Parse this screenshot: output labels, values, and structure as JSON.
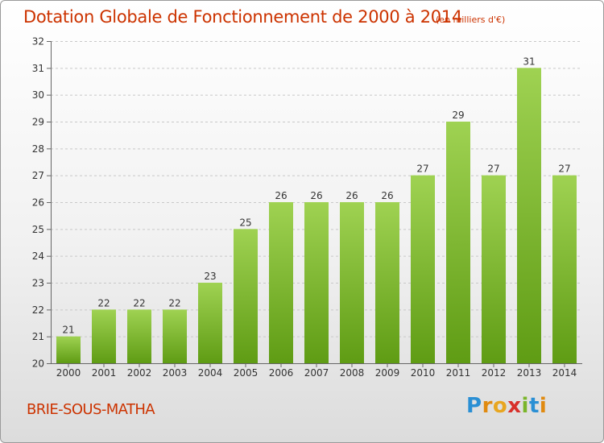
{
  "title": "Dotation Globale de Fonctionnement de 2000 à 2014",
  "subtitle": "(en milliers d'€)",
  "commune": "BRIE-SOUS-MATHA",
  "logo": {
    "letters": [
      "P",
      "r",
      "o",
      "x",
      "i",
      "t",
      "i"
    ]
  },
  "colors": {
    "bar_top": "#9fd252",
    "bar_bottom": "#5f9c14",
    "title": "#cc3300"
  },
  "chart_data": {
    "type": "bar",
    "categories": [
      "2000",
      "2001",
      "2002",
      "2003",
      "2004",
      "2005",
      "2006",
      "2007",
      "2008",
      "2009",
      "2010",
      "2011",
      "2012",
      "2013",
      "2014"
    ],
    "values": [
      21,
      22,
      22,
      22,
      23,
      25,
      26,
      26,
      26,
      26,
      27,
      29,
      27,
      31,
      27
    ],
    "ylim": [
      20,
      32
    ],
    "yticks": [
      20,
      21,
      22,
      23,
      24,
      25,
      26,
      27,
      28,
      29,
      30,
      31,
      32
    ],
    "grid": "horizontal dashed",
    "xlabel": "",
    "ylabel": ""
  }
}
